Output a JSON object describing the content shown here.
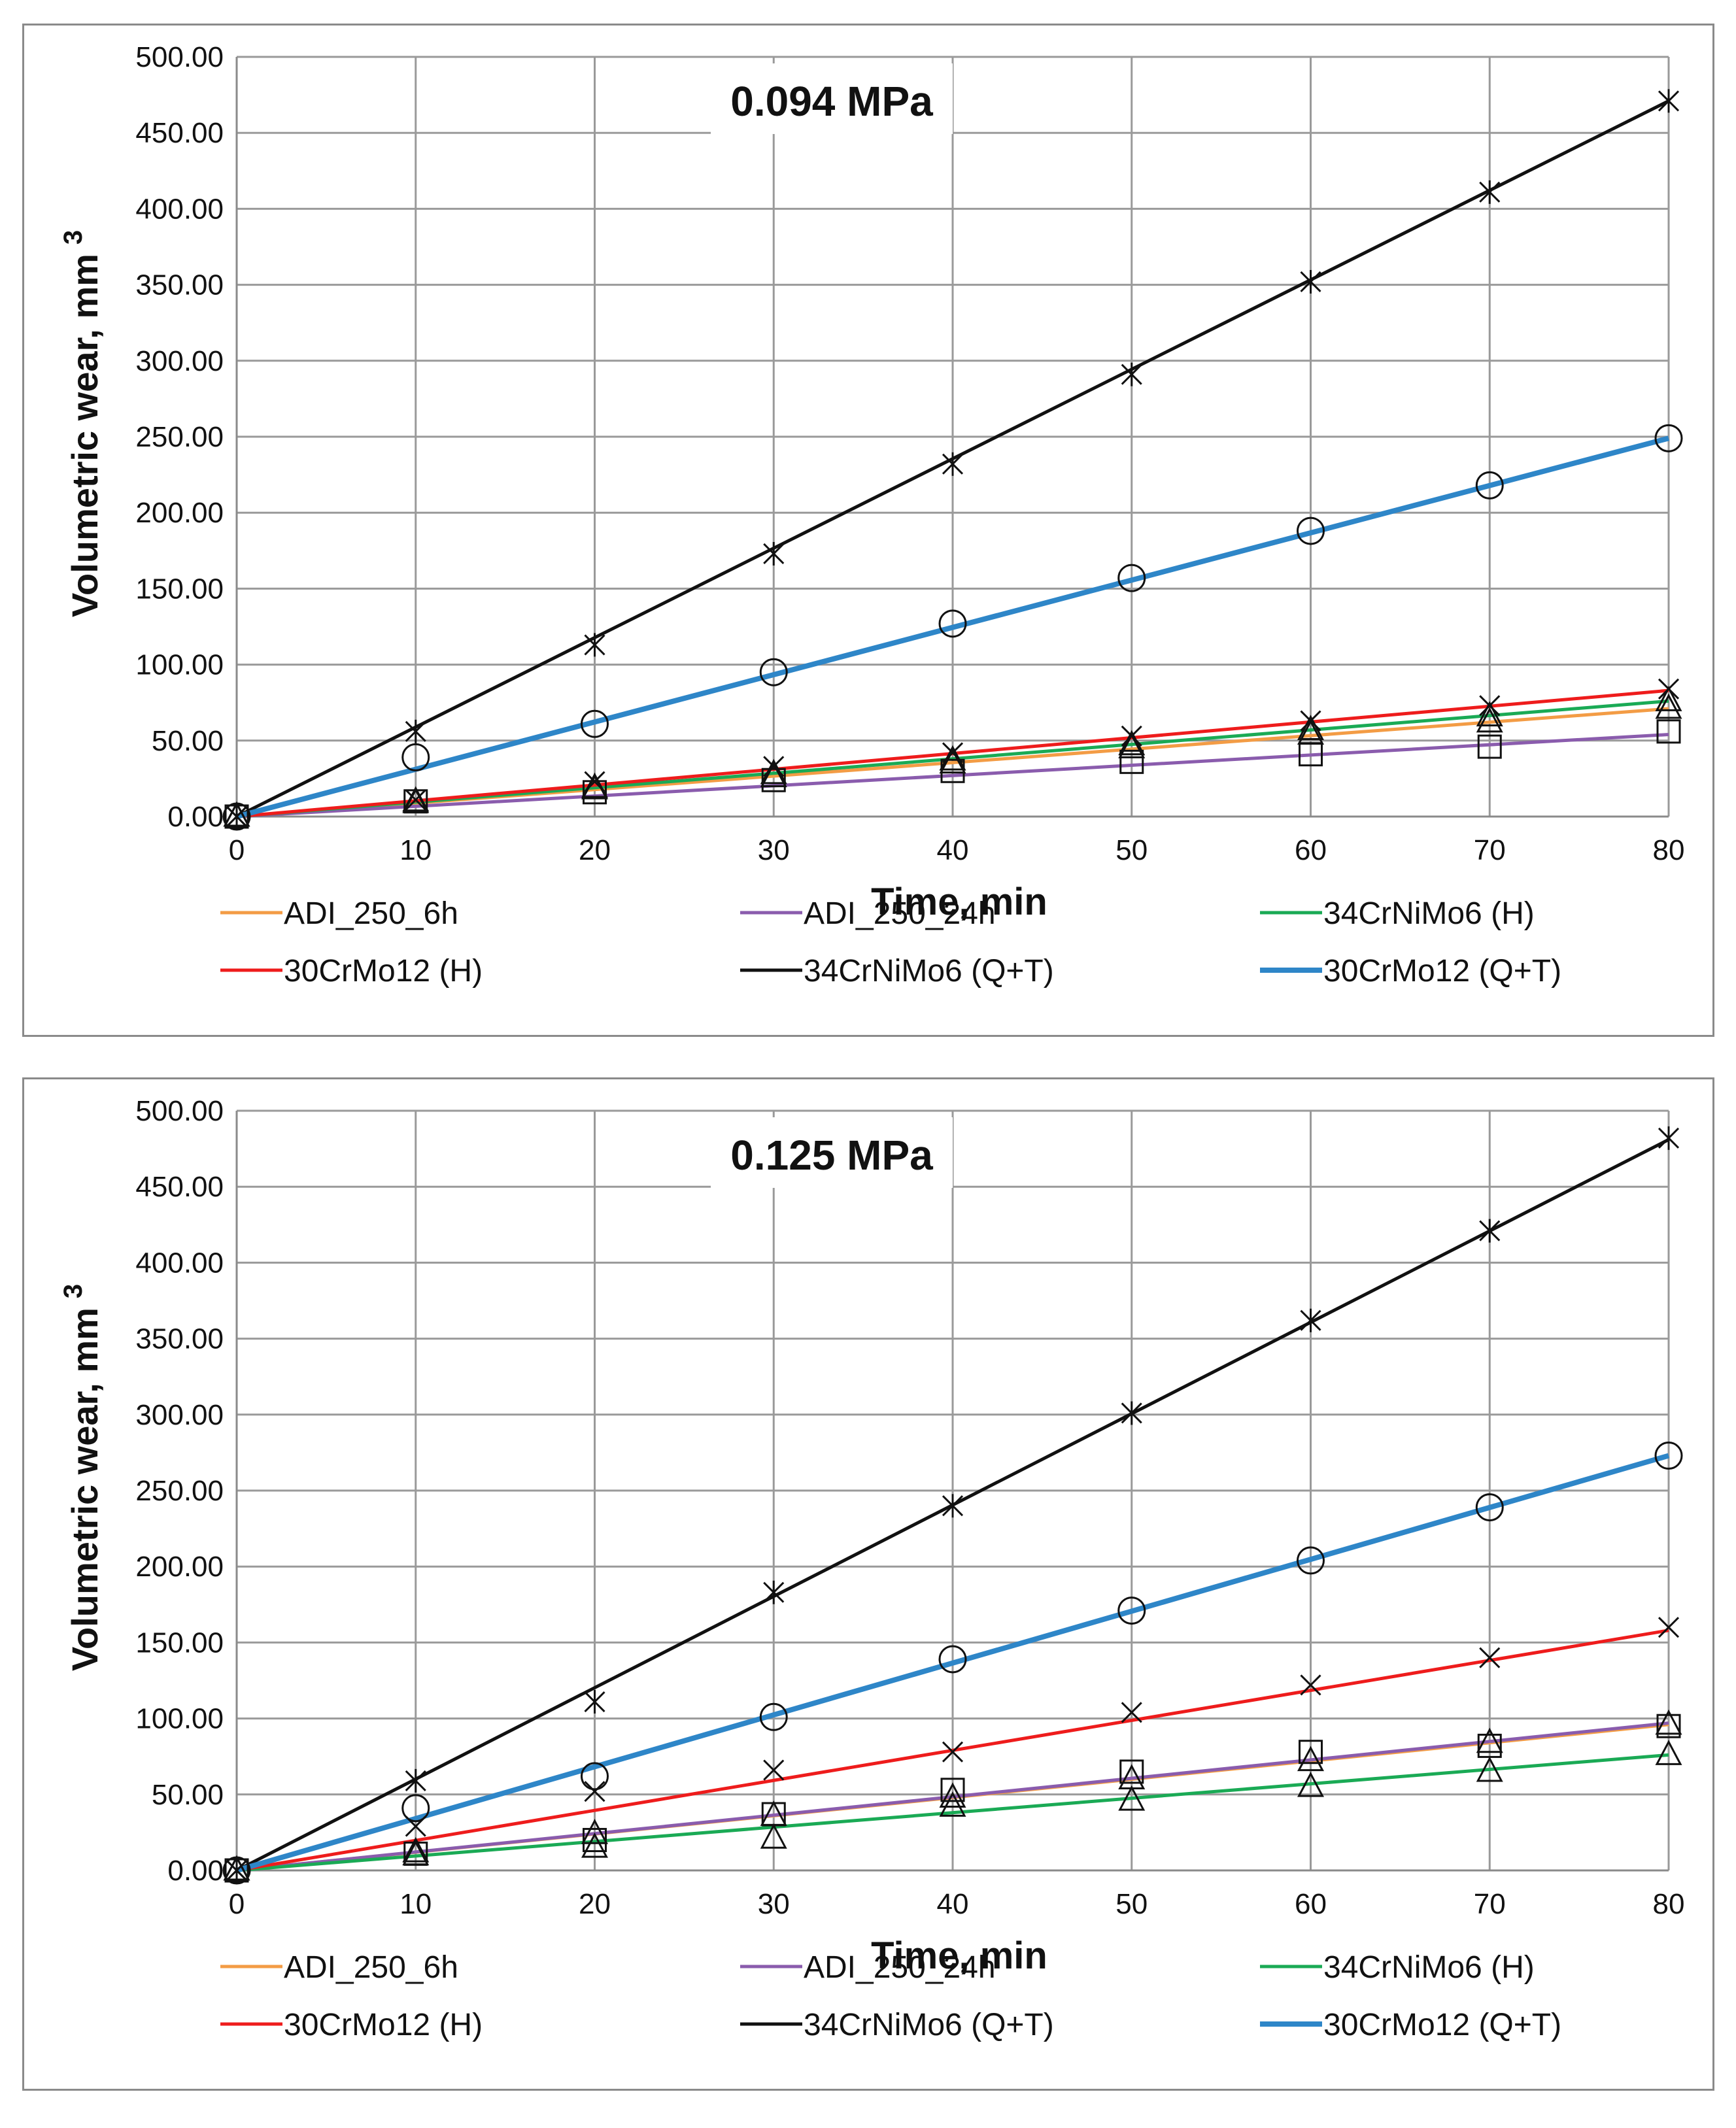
{
  "chart_data": [
    {
      "type": "line",
      "title": "0.094 MPa",
      "xlabel": "Time, min",
      "ylabel": "Volumetric  wear, mm",
      "ylabel_superscript": "3",
      "xlim": [
        0,
        80
      ],
      "ylim": [
        0,
        500
      ],
      "x_ticks": [
        "0",
        "10",
        "20",
        "30",
        "40",
        "50",
        "60",
        "70",
        "80"
      ],
      "y_ticks": [
        "0.00",
        "50.00",
        "100.00",
        "150.00",
        "200.00",
        "250.00",
        "300.00",
        "350.00",
        "400.00",
        "450.00",
        "500.00"
      ],
      "grid": true,
      "legend_position": "bottom",
      "x": [
        0,
        10,
        20,
        30,
        40,
        50,
        60,
        70,
        80
      ],
      "series": [
        {
          "name": "ADI_250_6h",
          "color": "#f39c45",
          "marker": "triangle",
          "line": [
            0,
            71
          ],
          "values": [
            0,
            9,
            18,
            26,
            35,
            45,
            54,
            62,
            71
          ]
        },
        {
          "name": "ADI_250_24h",
          "color": "#8a5cad",
          "marker": "square",
          "line": [
            0,
            54
          ],
          "values": [
            0,
            10,
            16,
            24,
            30,
            36,
            41,
            46,
            56
          ]
        },
        {
          "name": "34CrNiMo6 (H)",
          "color": "#1aaa55",
          "marker": "triangle",
          "line": [
            0,
            76
          ],
          "values": [
            0,
            10,
            19,
            28,
            37,
            47,
            57,
            66,
            76
          ]
        },
        {
          "name": "30CrMo12 (H)",
          "color": "#ee1c1c",
          "marker": "x",
          "line": [
            0,
            83
          ],
          "values": [
            0,
            11,
            23,
            33,
            42,
            53,
            63,
            73,
            84
          ]
        },
        {
          "name": "34CrNiMo6 (Q+T)",
          "color": "#111111",
          "marker": "star",
          "line": [
            0,
            471
          ],
          "values": [
            0,
            56,
            113,
            173,
            232,
            291,
            352,
            411,
            471
          ]
        },
        {
          "name": "30CrMo12 (Q+T)",
          "color": "#2e86c8",
          "marker": "circle",
          "line": [
            0,
            249
          ],
          "values": [
            0,
            39,
            61,
            95,
            127,
            157,
            188,
            218,
            249
          ]
        }
      ]
    },
    {
      "type": "line",
      "title": "0.125 MPa",
      "xlabel": "Time, min",
      "ylabel": "Volumetric  wear, mm",
      "ylabel_superscript": "3",
      "xlim": [
        0,
        80
      ],
      "ylim": [
        0,
        500
      ],
      "x_ticks": [
        "0",
        "10",
        "20",
        "30",
        "40",
        "50",
        "60",
        "70",
        "80"
      ],
      "y_ticks": [
        "0.00",
        "50.00",
        "100.00",
        "150.00",
        "200.00",
        "250.00",
        "300.00",
        "350.00",
        "400.00",
        "450.00",
        "500.00"
      ],
      "grid": true,
      "legend_position": "bottom",
      "x": [
        0,
        10,
        20,
        30,
        40,
        50,
        60,
        70,
        80
      ],
      "series": [
        {
          "name": "ADI_250_6h",
          "color": "#f39c45",
          "marker": "triangle",
          "line": [
            0,
            96
          ],
          "values": [
            0,
            12,
            24,
            36,
            48,
            60,
            72,
            84,
            96
          ]
        },
        {
          "name": "ADI_250_24h",
          "color": "#8a5cad",
          "marker": "square",
          "line": [
            0,
            97
          ],
          "values": [
            0,
            11,
            20,
            37,
            53,
            65,
            78,
            82,
            95
          ]
        },
        {
          "name": "34CrNiMo6 (H)",
          "color": "#1aaa55",
          "marker": "triangle",
          "line": [
            0,
            76
          ],
          "values": [
            0,
            10,
            15,
            21,
            42,
            46,
            55,
            65,
            76
          ]
        },
        {
          "name": "30CrMo12 (H)",
          "color": "#ee1c1c",
          "marker": "x",
          "line": [
            0,
            158
          ],
          "values": [
            0,
            29,
            52,
            66,
            78,
            104,
            122,
            140,
            160
          ]
        },
        {
          "name": "34CrNiMo6 (Q+T)",
          "color": "#111111",
          "marker": "star",
          "line": [
            0,
            481
          ],
          "values": [
            0,
            59,
            111,
            183,
            240,
            301,
            362,
            421,
            482
          ]
        },
        {
          "name": "30CrMo12 (Q+T)",
          "color": "#2e86c8",
          "marker": "circle",
          "line": [
            0,
            273
          ],
          "values": [
            0,
            41,
            62,
            101,
            139,
            171,
            204,
            239,
            273
          ]
        }
      ]
    }
  ]
}
